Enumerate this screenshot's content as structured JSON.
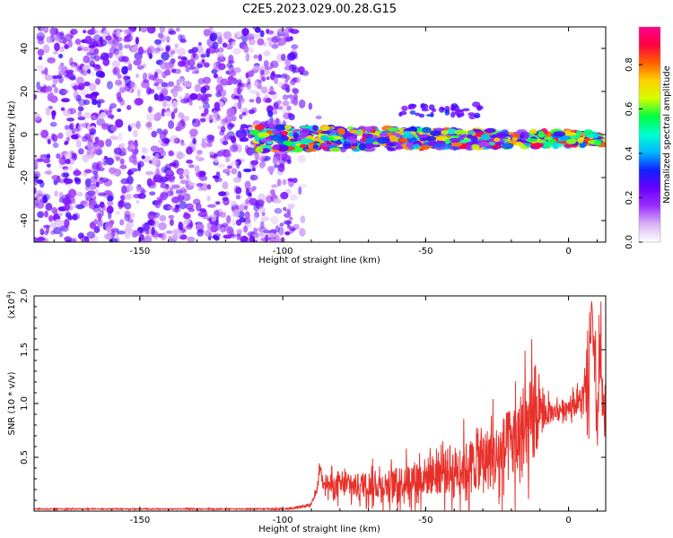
{
  "figure_title": "C2E5.2023.029.00.28.G15",
  "colorbar": {
    "label": "Normalized spectral amplitude",
    "ticks": [
      "0.0",
      "0.2",
      "0.4",
      "0.6",
      "0.8"
    ],
    "tick_values": [
      0.0,
      0.2,
      0.4,
      0.6,
      0.8
    ],
    "range": [
      0,
      0.97
    ]
  },
  "chart_data": [
    {
      "type": "heatmap",
      "title": "",
      "xlabel": "Height of straight line (km)",
      "ylabel": "Frequency (Hz)",
      "xlim": [
        -187,
        13
      ],
      "ylim": [
        -50,
        50
      ],
      "xticks": [
        "-150",
        "-100",
        "-50",
        "0"
      ],
      "xtick_values": [
        -150,
        -100,
        -50,
        0
      ],
      "yticks": [
        "40",
        "20",
        "0",
        "-20",
        "-40"
      ],
      "ytick_values": [
        40,
        20,
        0,
        -20,
        -40
      ],
      "colormap": [
        "#ffffff",
        "#d9b3f5",
        "#9b30ff",
        "#6a00ff",
        "#1020ff",
        "#00b7ff",
        "#00ffd0",
        "#00ff40",
        "#d4ff00",
        "#ffd000",
        "#ff6000",
        "#ff0040",
        "#ff0090"
      ],
      "regions": [
        {
          "name": "noise",
          "x_range": [
            -187,
            -95
          ],
          "y_range": [
            -50,
            50
          ],
          "amplitude": [
            0.0,
            0.25
          ]
        },
        {
          "name": "main-band",
          "x_range": [
            -110,
            12
          ],
          "center_y": -2,
          "half_width": 6,
          "amplitude": [
            0.15,
            0.95
          ]
        },
        {
          "name": "upper-trace",
          "x_range": [
            -60,
            -30
          ],
          "y_range": [
            8,
            14
          ],
          "amplitude": [
            0.1,
            0.25
          ]
        }
      ]
    },
    {
      "type": "line",
      "title": "",
      "xlabel": "Height of straight line (km)",
      "ylabel": "SNR (10 * v/v)",
      "y_multiplier_label": "(x10",
      "y_multiplier_exp": "4",
      "y_multiplier_close": ")",
      "xlim": [
        -187,
        13
      ],
      "ylim": [
        0,
        2.0
      ],
      "xticks": [
        "-150",
        "-100",
        "-50",
        "0"
      ],
      "xtick_values": [
        -150,
        -100,
        -50,
        0
      ],
      "yticks": [
        "0.5",
        "1.0",
        "1.5",
        "2.0"
      ],
      "ytick_values": [
        0.5,
        1.0,
        1.5,
        2.0
      ],
      "color": "#e8302a",
      "series": [
        {
          "x": [
            -187,
            -170,
            -150,
            -130,
            -110,
            -100,
            -95,
            -90,
            -88,
            -87,
            -86,
            -84,
            -82,
            -80,
            -75,
            -70,
            -65,
            -60,
            -55,
            -50,
            -45,
            -40,
            -35,
            -30,
            -25,
            -20,
            -15,
            -12,
            -10,
            -5,
            0,
            3,
            5,
            7,
            8,
            9,
            10,
            11,
            12,
            13
          ],
          "values": [
            0.02,
            0.02,
            0.02,
            0.02,
            0.02,
            0.02,
            0.03,
            0.06,
            0.2,
            0.42,
            0.3,
            0.25,
            0.22,
            0.24,
            0.23,
            0.25,
            0.24,
            0.26,
            0.3,
            0.32,
            0.36,
            0.38,
            0.42,
            0.48,
            0.5,
            0.62,
            0.72,
            0.85,
            0.9,
            0.92,
            0.98,
            1.0,
            1.05,
            1.1,
            1.95,
            1.3,
            0.8,
            1.45,
            0.95,
            0.8
          ],
          "noise_amplitude": [
            0.005,
            0.005,
            0.005,
            0.005,
            0.005,
            0.006,
            0.01,
            0.02,
            0.04,
            0.05,
            0.06,
            0.12,
            0.14,
            0.13,
            0.14,
            0.15,
            0.16,
            0.18,
            0.2,
            0.22,
            0.25,
            0.28,
            0.3,
            0.35,
            0.4,
            0.45,
            0.5,
            0.55,
            0.2,
            0.1,
            0.1,
            0.12,
            0.2,
            0.4,
            0.1,
            0.4,
            0.4,
            0.5,
            0.3,
            0.2
          ]
        }
      ]
    }
  ]
}
